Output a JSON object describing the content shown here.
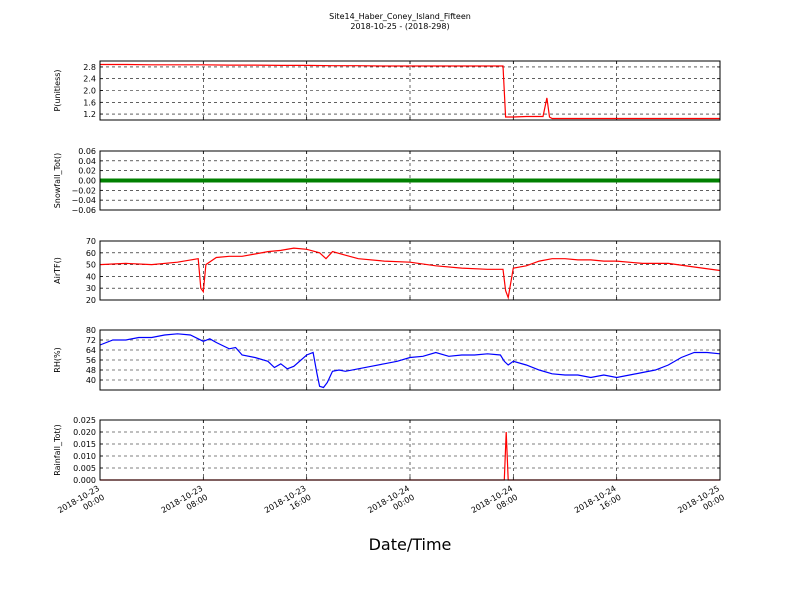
{
  "title": "Site14_Haber_Coney_Island_Fifteen",
  "subtitle": "2018-10-25 - (2018-298)",
  "xlabel": "Date/Time",
  "x_ticks": [
    "2018-10-23\n00:00",
    "2018-10-23\n08:00",
    "2018-10-23\n16:00",
    "2018-10-24\n00:00",
    "2018-10-24\n08:00",
    "2018-10-24\n16:00",
    "2018-10-25\n00:00"
  ],
  "colors": {
    "p": "#ff0000",
    "snow": "#008000",
    "airtf": "#ff0000",
    "rh": "#0000ff",
    "rain": "#ff0000"
  },
  "chart_data": [
    {
      "type": "line",
      "ylabel": "P(unitless)",
      "ylim": [
        1.0,
        3.0
      ],
      "yticks": [
        "2.8",
        "2.4",
        "2.0",
        "1.6",
        "1.2"
      ],
      "x_unit": "hours since 2018-10-23 00:00",
      "x": [
        0,
        2,
        4,
        6,
        8,
        10,
        12,
        14,
        16,
        18,
        20,
        22,
        24,
        26,
        28,
        30,
        31.2,
        31.4,
        32,
        33,
        34,
        34.3,
        34.6,
        34.8,
        35,
        36,
        38,
        40,
        42,
        44,
        46,
        48
      ],
      "values": [
        2.88,
        2.88,
        2.87,
        2.87,
        2.87,
        2.86,
        2.86,
        2.85,
        2.85,
        2.84,
        2.84,
        2.83,
        2.83,
        2.83,
        2.83,
        2.83,
        2.83,
        1.1,
        1.1,
        1.12,
        1.12,
        1.12,
        1.75,
        1.1,
        1.05,
        1.05,
        1.05,
        1.05,
        1.05,
        1.05,
        1.05,
        1.05
      ]
    },
    {
      "type": "line",
      "ylabel": "Snowfall_Tot()",
      "ylim": [
        -0.06,
        0.06
      ],
      "yticks": [
        "0.06",
        "0.04",
        "0.02",
        "0.00",
        "−0.02",
        "−0.04",
        "−0.06"
      ],
      "x": [
        0,
        48
      ],
      "values": [
        0,
        0
      ]
    },
    {
      "type": "line",
      "ylabel": "AirTF()",
      "ylim": [
        20,
        70
      ],
      "yticks": [
        "70",
        "60",
        "50",
        "40",
        "30",
        "20"
      ],
      "x": [
        0,
        2,
        4,
        6,
        7.6,
        7.8,
        8,
        8.2,
        9,
        10,
        11,
        12,
        13,
        14,
        15,
        16,
        17,
        17.5,
        18,
        19,
        20,
        22,
        24,
        26,
        28,
        30,
        31.2,
        31.4,
        31.6,
        32,
        33,
        34,
        35,
        36,
        37,
        38,
        39,
        40,
        42,
        44,
        46,
        48
      ],
      "values": [
        50,
        51,
        50,
        52,
        55,
        30,
        27,
        50,
        56,
        57,
        57,
        59,
        61,
        62,
        64,
        63,
        60,
        55,
        61,
        58,
        55,
        53,
        52,
        49,
        47,
        46,
        46,
        28,
        22,
        47,
        49,
        53,
        55,
        55,
        54,
        54,
        53,
        53,
        51,
        51,
        48,
        45
      ]
    },
    {
      "type": "line",
      "ylabel": "RH(%)",
      "ylim": [
        32,
        80
      ],
      "yticks": [
        "80",
        "72",
        "64",
        "56",
        "48",
        "40"
      ],
      "x": [
        0,
        1,
        2,
        3,
        4,
        5,
        6,
        7,
        8,
        8.5,
        9,
        10,
        10.5,
        11,
        12,
        13,
        13.5,
        14,
        14.5,
        15,
        16,
        16.5,
        16.8,
        17,
        17.3,
        17.6,
        18,
        18.5,
        19,
        20,
        21,
        22,
        23,
        24,
        25,
        26,
        27,
        28,
        29,
        30,
        31,
        31.3,
        31.6,
        32,
        33,
        34,
        35,
        36,
        37,
        38,
        39,
        40,
        41,
        42,
        43,
        44,
        45,
        46,
        47,
        48
      ],
      "values": [
        68,
        72,
        72,
        74,
        74,
        76,
        77,
        76,
        71,
        73,
        70,
        65,
        66,
        60,
        58,
        55,
        50,
        53,
        49,
        51,
        60,
        62,
        45,
        35,
        34,
        38,
        47,
        48,
        47,
        49,
        51,
        53,
        55,
        58,
        59,
        62,
        59,
        60,
        60,
        61,
        60,
        55,
        52,
        55,
        52,
        48,
        45,
        44,
        44,
        42,
        44,
        42,
        44,
        46,
        48,
        52,
        58,
        62,
        62,
        61
      ]
    },
    {
      "type": "line",
      "ylabel": "Rainfall_Tot()",
      "ylim": [
        0,
        0.025
      ],
      "yticks": [
        "0.025",
        "0.020",
        "0.015",
        "0.010",
        "0.005",
        "0.000"
      ],
      "x": [
        0,
        31.3,
        31.45,
        31.6,
        48
      ],
      "values": [
        0,
        0,
        0.02,
        0,
        0
      ]
    }
  ]
}
